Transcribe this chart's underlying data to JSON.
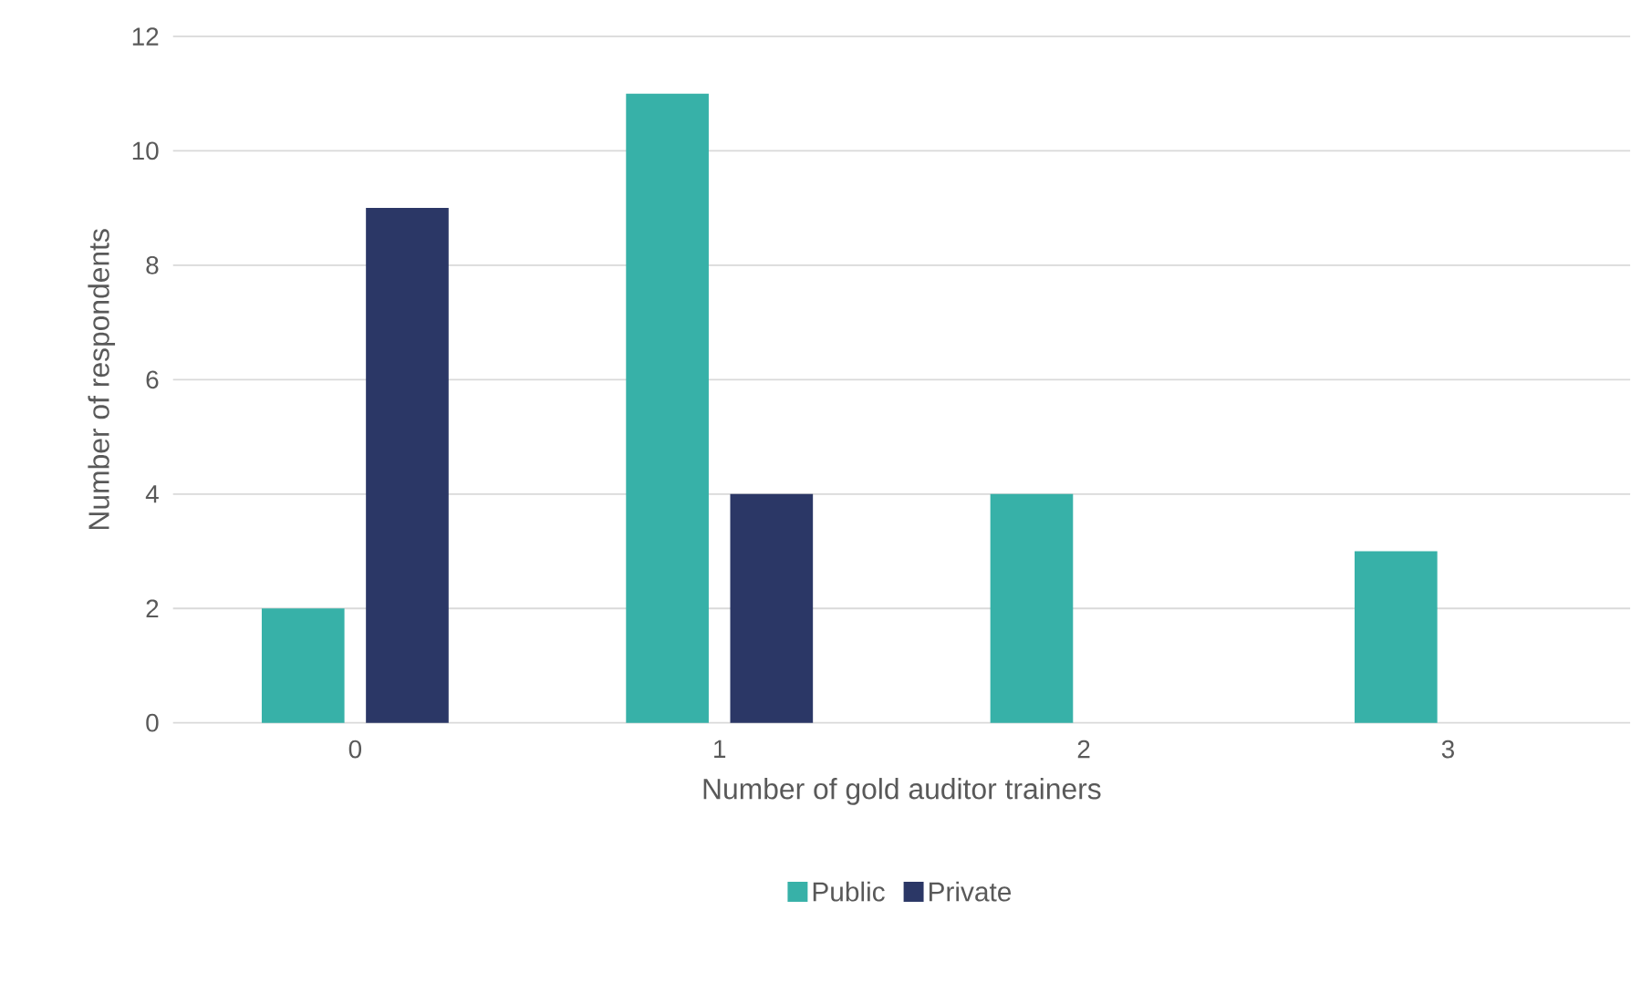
{
  "chart_data": {
    "type": "bar",
    "xlabel": "Number of gold auditor trainers",
    "ylabel": "Number of respondents",
    "categories": [
      "0",
      "1",
      "2",
      "3"
    ],
    "series": [
      {
        "name": "Public",
        "color": "#37b1a8",
        "values": [
          2,
          11,
          4,
          3
        ]
      },
      {
        "name": "Private",
        "color": "#2b3766",
        "values": [
          9,
          4,
          0,
          0
        ]
      }
    ],
    "ylim": [
      0,
      12
    ],
    "yticks": [
      0,
      2,
      4,
      6,
      8,
      10,
      12
    ],
    "grid": "y",
    "legend": "bottom"
  }
}
